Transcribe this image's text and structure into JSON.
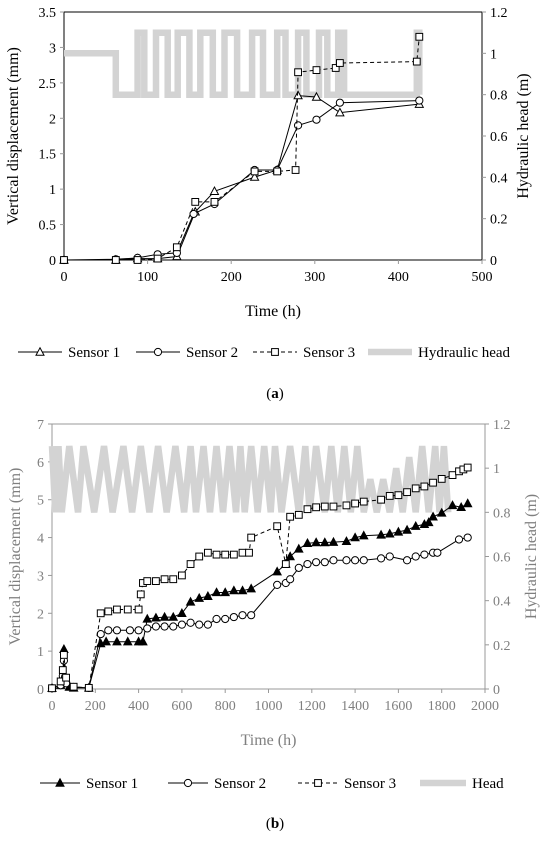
{
  "chart_data": [
    {
      "panel_label": "(a)",
      "panel_letter": "a",
      "type": "line",
      "xlabel": "Time (h)",
      "ylabel_left": "Vertical displacement (mm)",
      "ylabel_right": "Hydraulic head (m)",
      "xlim": [
        0,
        500
      ],
      "ylim_left": [
        0,
        3.5
      ],
      "ylim_right": [
        0,
        1.2
      ],
      "xticks": [
        "0",
        "100",
        "200",
        "300",
        "400",
        "500"
      ],
      "yticks_left": [
        "0",
        "0.5",
        "1",
        "1.5",
        "2",
        "2.5",
        "3",
        "3.5"
      ],
      "yticks_right": [
        "0",
        "0.2",
        "0.4",
        "0.6",
        "0.8",
        "1",
        "1.2"
      ],
      "legend_position": "bottom",
      "series": [
        {
          "name": "Sensor 1",
          "marker": "triangle",
          "axis": "left",
          "color": "#000000",
          "x": [
            0,
            62,
            88,
            112,
            135,
            157,
            180,
            228,
            255,
            280,
            302,
            330,
            425
          ],
          "y": [
            0.0,
            0.0,
            0.02,
            0.02,
            0.05,
            0.68,
            0.97,
            1.17,
            1.27,
            2.32,
            2.3,
            2.08,
            2.2
          ]
        },
        {
          "name": "Sensor 2",
          "marker": "circle",
          "axis": "left",
          "color": "#000000",
          "x": [
            0,
            62,
            88,
            112,
            135,
            155,
            180,
            228,
            255,
            280,
            302,
            330,
            425
          ],
          "y": [
            0.0,
            0.01,
            0.03,
            0.08,
            0.1,
            0.65,
            0.79,
            1.27,
            1.27,
            1.9,
            1.98,
            2.22,
            2.25
          ]
        },
        {
          "name": "Sensor 3",
          "marker": "square",
          "axis": "left",
          "color": "#000000",
          "x": [
            0,
            62,
            88,
            112,
            135,
            157,
            180,
            228,
            255,
            277,
            280,
            302,
            325,
            330,
            422,
            425
          ],
          "y": [
            0.0,
            0.0,
            0.0,
            0.02,
            0.18,
            0.82,
            0.82,
            1.25,
            1.25,
            1.27,
            2.65,
            2.68,
            2.71,
            2.78,
            2.8,
            3.15
          ]
        },
        {
          "name": "Hydraulic head",
          "axis": "right",
          "color": "#d3d3d3",
          "x": [
            0,
            62,
            62,
            88,
            88,
            96,
            96,
            110,
            110,
            124,
            124,
            136,
            136,
            150,
            150,
            163,
            163,
            178,
            178,
            192,
            192,
            207,
            207,
            225,
            225,
            238,
            238,
            255,
            255,
            265,
            265,
            280,
            280,
            290,
            290,
            305,
            305,
            315,
            315,
            328,
            328,
            335,
            335,
            422,
            422,
            425,
            425
          ],
          "y": [
            1.0,
            1.0,
            0.8,
            0.8,
            1.1,
            1.1,
            0.8,
            0.8,
            1.1,
            1.1,
            0.8,
            0.8,
            1.1,
            1.1,
            0.8,
            0.8,
            1.1,
            1.1,
            0.8,
            0.8,
            1.1,
            1.1,
            0.8,
            0.8,
            1.1,
            1.1,
            0.8,
            0.8,
            1.1,
            1.1,
            0.8,
            0.8,
            1.1,
            1.1,
            0.8,
            0.8,
            1.1,
            1.1,
            0.8,
            0.8,
            1.1,
            1.1,
            0.8,
            0.8,
            1.1,
            1.1,
            0.8
          ]
        }
      ]
    },
    {
      "panel_label": "(b)",
      "panel_letter": "b",
      "type": "line",
      "xlabel": "Time (h)",
      "ylabel_left": "Vertical displacement (mm)",
      "ylabel_right": "Hydraulic head (m)",
      "xlim": [
        0,
        2000
      ],
      "ylim_left": [
        0,
        7
      ],
      "ylim_right": [
        0,
        1.2
      ],
      "xticks": [
        "0",
        "200",
        "400",
        "600",
        "800",
        "1000",
        "1200",
        "1400",
        "1600",
        "1800",
        "2000"
      ],
      "yticks_left": [
        "0",
        "1",
        "2",
        "3",
        "4",
        "5",
        "6",
        "7"
      ],
      "yticks_right": [
        "0",
        "0.2",
        "0.4",
        "0.6",
        "0.8",
        "1",
        "1.2"
      ],
      "legend_position": "bottom",
      "series": [
        {
          "name": "Sensor 1",
          "marker": "triangle-filled",
          "axis": "left",
          "color": "#000000",
          "x": [
            0,
            40,
            50,
            55,
            65,
            80,
            100,
            170,
            225,
            250,
            300,
            350,
            400,
            420,
            440,
            480,
            520,
            560,
            600,
            640,
            680,
            720,
            760,
            800,
            840,
            880,
            920,
            1040,
            1080,
            1100,
            1140,
            1180,
            1220,
            1260,
            1300,
            1360,
            1400,
            1440,
            1520,
            1560,
            1600,
            1640,
            1680,
            1720,
            1740,
            1760,
            1800,
            1850,
            1890,
            1920
          ],
          "y": [
            0.02,
            0.1,
            0.3,
            1.05,
            0.2,
            0.05,
            0.03,
            0.03,
            1.2,
            1.25,
            1.25,
            1.25,
            1.25,
            1.25,
            1.85,
            1.88,
            1.9,
            1.9,
            2.0,
            2.3,
            2.4,
            2.45,
            2.55,
            2.55,
            2.6,
            2.6,
            2.65,
            3.1,
            3.3,
            3.5,
            3.7,
            3.85,
            3.87,
            3.87,
            3.88,
            3.9,
            4.0,
            4.05,
            4.07,
            4.1,
            4.15,
            4.2,
            4.3,
            4.35,
            4.4,
            4.55,
            4.65,
            4.85,
            4.8,
            4.9
          ]
        },
        {
          "name": "Sensor 2",
          "marker": "circle",
          "axis": "left",
          "color": "#000000",
          "x": [
            0,
            40,
            50,
            55,
            65,
            100,
            170,
            225,
            260,
            300,
            360,
            400,
            440,
            480,
            520,
            560,
            600,
            640,
            680,
            720,
            760,
            800,
            840,
            880,
            920,
            1040,
            1080,
            1100,
            1140,
            1180,
            1220,
            1260,
            1300,
            1360,
            1400,
            1440,
            1520,
            1560,
            1640,
            1680,
            1720,
            1760,
            1780,
            1880,
            1920
          ],
          "y": [
            0.02,
            0.1,
            0.35,
            0.75,
            0.15,
            0.05,
            0.03,
            1.45,
            1.55,
            1.55,
            1.55,
            1.55,
            1.6,
            1.65,
            1.65,
            1.65,
            1.7,
            1.75,
            1.7,
            1.7,
            1.85,
            1.85,
            1.9,
            1.95,
            1.95,
            2.75,
            2.8,
            2.9,
            3.2,
            3.3,
            3.35,
            3.35,
            3.4,
            3.4,
            3.4,
            3.4,
            3.45,
            3.5,
            3.4,
            3.5,
            3.55,
            3.6,
            3.6,
            3.95,
            4.0
          ]
        },
        {
          "name": "Sensor 3",
          "marker": "square",
          "axis": "left",
          "color": "#000000",
          "x": [
            0,
            40,
            50,
            55,
            65,
            100,
            170,
            225,
            260,
            300,
            350,
            400,
            410,
            420,
            440,
            480,
            520,
            560,
            600,
            640,
            680,
            720,
            760,
            800,
            840,
            880,
            910,
            920,
            1040,
            1080,
            1100,
            1140,
            1180,
            1220,
            1260,
            1300,
            1360,
            1400,
            1440,
            1520,
            1560,
            1600,
            1640,
            1680,
            1720,
            1760,
            1800,
            1850,
            1880,
            1900,
            1920
          ],
          "y": [
            0.02,
            0.2,
            0.5,
            0.9,
            0.3,
            0.06,
            0.03,
            2.0,
            2.05,
            2.1,
            2.1,
            2.1,
            2.5,
            2.8,
            2.85,
            2.85,
            2.9,
            2.9,
            3.0,
            3.3,
            3.5,
            3.6,
            3.55,
            3.55,
            3.55,
            3.6,
            3.6,
            4.0,
            4.3,
            3.3,
            4.55,
            4.6,
            4.75,
            4.8,
            4.82,
            4.82,
            4.85,
            4.9,
            4.95,
            5.0,
            5.1,
            5.12,
            5.2,
            5.3,
            5.35,
            5.45,
            5.55,
            5.65,
            5.75,
            5.8,
            5.85
          ]
        },
        {
          "name": "Head",
          "axis": "right",
          "color": "#d3d3d3",
          "x": [
            0,
            15,
            30,
            45,
            80,
            120,
            145,
            195,
            240,
            280,
            330,
            370,
            410,
            450,
            490,
            530,
            570,
            610,
            640,
            665,
            700,
            730,
            760,
            790,
            820,
            850,
            870,
            890,
            920,
            950,
            980,
            1010,
            1030,
            1060,
            1100,
            1140,
            1170,
            1190,
            1220,
            1260,
            1290,
            1320,
            1350,
            1380,
            1410,
            1440,
            1470,
            1500,
            1530,
            1560,
            1590,
            1620,
            1650,
            1680,
            1710,
            1740,
            1770,
            1790,
            1810,
            1830
          ],
          "y": [
            1.1,
            0.8,
            1.1,
            0.8,
            1.1,
            0.8,
            1.1,
            0.8,
            1.1,
            0.8,
            1.1,
            0.8,
            1.1,
            0.8,
            1.1,
            0.8,
            1.1,
            0.8,
            1.1,
            0.8,
            1.1,
            0.8,
            1.1,
            0.8,
            1.1,
            0.8,
            1.1,
            0.8,
            1.1,
            0.8,
            1.1,
            0.8,
            1.1,
            0.8,
            1.1,
            0.8,
            1.1,
            0.8,
            1.1,
            0.8,
            1.1,
            0.8,
            1.1,
            0.8,
            1.1,
            0.8,
            0.95,
            0.8,
            0.95,
            0.8,
            1.0,
            0.8,
            1.05,
            0.8,
            1.1,
            0.8,
            1.1,
            0.8,
            1.1,
            0.8
          ]
        }
      ]
    }
  ]
}
